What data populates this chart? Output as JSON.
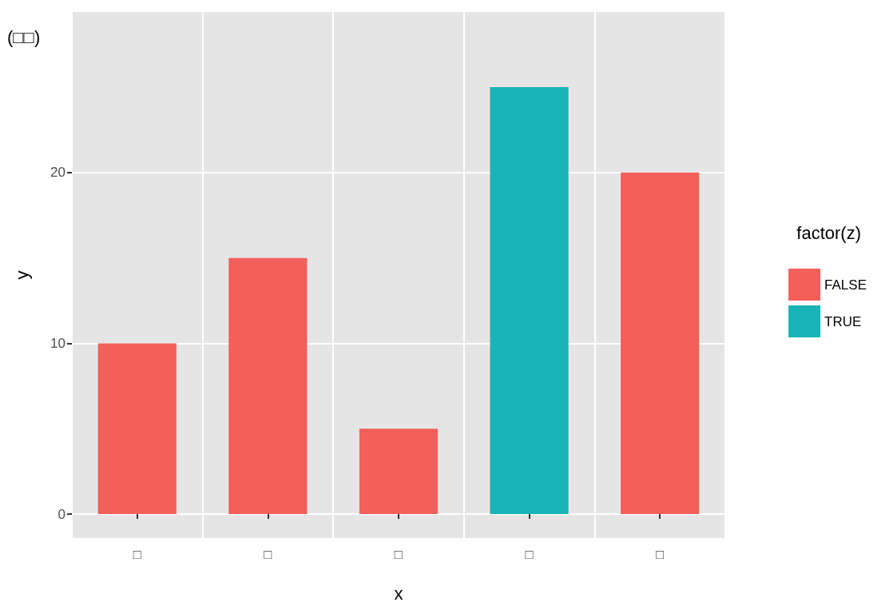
{
  "chart_data": {
    "type": "bar",
    "title": "(□□)",
    "xlabel": "x",
    "ylabel": "y",
    "legend_title": "factor(z)",
    "categories": [
      "□",
      "□",
      "□",
      "□",
      "□"
    ],
    "series": [
      {
        "name": "FALSE",
        "color": "#f35f5a",
        "values": [
          10,
          15,
          5,
          null,
          20
        ]
      },
      {
        "name": "TRUE",
        "color": "#19b4b8",
        "values": [
          null,
          null,
          null,
          25,
          null
        ]
      }
    ],
    "stacked": true,
    "ylim": [
      -1.4,
      29.4
    ],
    "yticks": [
      0,
      10,
      20
    ],
    "grid": true,
    "legend": "right"
  }
}
